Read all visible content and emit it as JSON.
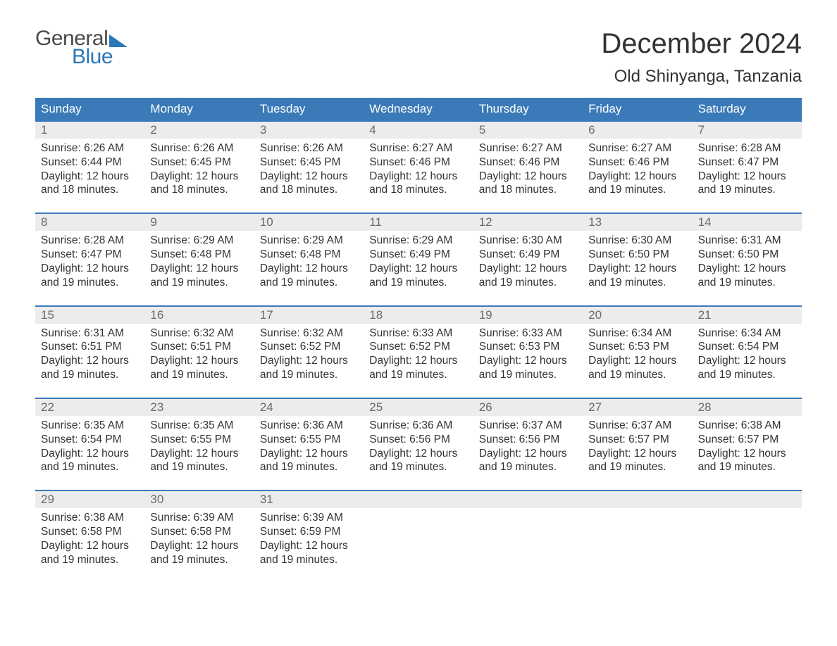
{
  "brand": {
    "word1": "General",
    "word2": "Blue",
    "accent_color": "#2b77b8",
    "text_color": "#4a4a4a"
  },
  "title": "December 2024",
  "location": "Old Shinyanga, Tanzania",
  "colors": {
    "header_bg": "#3a7ab8",
    "header_text": "#ffffff",
    "daynum_bg": "#ececec",
    "daynum_text": "#6a6a6a",
    "body_text": "#333333",
    "week_border": "#3a7ab8",
    "page_bg": "#ffffff"
  },
  "day_labels": [
    "Sunday",
    "Monday",
    "Tuesday",
    "Wednesday",
    "Thursday",
    "Friday",
    "Saturday"
  ],
  "weeks": [
    [
      {
        "n": "1",
        "sr": "Sunrise: 6:26 AM",
        "ss": "Sunset: 6:44 PM",
        "d1": "Daylight: 12 hours",
        "d2": "and 18 minutes."
      },
      {
        "n": "2",
        "sr": "Sunrise: 6:26 AM",
        "ss": "Sunset: 6:45 PM",
        "d1": "Daylight: 12 hours",
        "d2": "and 18 minutes."
      },
      {
        "n": "3",
        "sr": "Sunrise: 6:26 AM",
        "ss": "Sunset: 6:45 PM",
        "d1": "Daylight: 12 hours",
        "d2": "and 18 minutes."
      },
      {
        "n": "4",
        "sr": "Sunrise: 6:27 AM",
        "ss": "Sunset: 6:46 PM",
        "d1": "Daylight: 12 hours",
        "d2": "and 18 minutes."
      },
      {
        "n": "5",
        "sr": "Sunrise: 6:27 AM",
        "ss": "Sunset: 6:46 PM",
        "d1": "Daylight: 12 hours",
        "d2": "and 18 minutes."
      },
      {
        "n": "6",
        "sr": "Sunrise: 6:27 AM",
        "ss": "Sunset: 6:46 PM",
        "d1": "Daylight: 12 hours",
        "d2": "and 19 minutes."
      },
      {
        "n": "7",
        "sr": "Sunrise: 6:28 AM",
        "ss": "Sunset: 6:47 PM",
        "d1": "Daylight: 12 hours",
        "d2": "and 19 minutes."
      }
    ],
    [
      {
        "n": "8",
        "sr": "Sunrise: 6:28 AM",
        "ss": "Sunset: 6:47 PM",
        "d1": "Daylight: 12 hours",
        "d2": "and 19 minutes."
      },
      {
        "n": "9",
        "sr": "Sunrise: 6:29 AM",
        "ss": "Sunset: 6:48 PM",
        "d1": "Daylight: 12 hours",
        "d2": "and 19 minutes."
      },
      {
        "n": "10",
        "sr": "Sunrise: 6:29 AM",
        "ss": "Sunset: 6:48 PM",
        "d1": "Daylight: 12 hours",
        "d2": "and 19 minutes."
      },
      {
        "n": "11",
        "sr": "Sunrise: 6:29 AM",
        "ss": "Sunset: 6:49 PM",
        "d1": "Daylight: 12 hours",
        "d2": "and 19 minutes."
      },
      {
        "n": "12",
        "sr": "Sunrise: 6:30 AM",
        "ss": "Sunset: 6:49 PM",
        "d1": "Daylight: 12 hours",
        "d2": "and 19 minutes."
      },
      {
        "n": "13",
        "sr": "Sunrise: 6:30 AM",
        "ss": "Sunset: 6:50 PM",
        "d1": "Daylight: 12 hours",
        "d2": "and 19 minutes."
      },
      {
        "n": "14",
        "sr": "Sunrise: 6:31 AM",
        "ss": "Sunset: 6:50 PM",
        "d1": "Daylight: 12 hours",
        "d2": "and 19 minutes."
      }
    ],
    [
      {
        "n": "15",
        "sr": "Sunrise: 6:31 AM",
        "ss": "Sunset: 6:51 PM",
        "d1": "Daylight: 12 hours",
        "d2": "and 19 minutes."
      },
      {
        "n": "16",
        "sr": "Sunrise: 6:32 AM",
        "ss": "Sunset: 6:51 PM",
        "d1": "Daylight: 12 hours",
        "d2": "and 19 minutes."
      },
      {
        "n": "17",
        "sr": "Sunrise: 6:32 AM",
        "ss": "Sunset: 6:52 PM",
        "d1": "Daylight: 12 hours",
        "d2": "and 19 minutes."
      },
      {
        "n": "18",
        "sr": "Sunrise: 6:33 AM",
        "ss": "Sunset: 6:52 PM",
        "d1": "Daylight: 12 hours",
        "d2": "and 19 minutes."
      },
      {
        "n": "19",
        "sr": "Sunrise: 6:33 AM",
        "ss": "Sunset: 6:53 PM",
        "d1": "Daylight: 12 hours",
        "d2": "and 19 minutes."
      },
      {
        "n": "20",
        "sr": "Sunrise: 6:34 AM",
        "ss": "Sunset: 6:53 PM",
        "d1": "Daylight: 12 hours",
        "d2": "and 19 minutes."
      },
      {
        "n": "21",
        "sr": "Sunrise: 6:34 AM",
        "ss": "Sunset: 6:54 PM",
        "d1": "Daylight: 12 hours",
        "d2": "and 19 minutes."
      }
    ],
    [
      {
        "n": "22",
        "sr": "Sunrise: 6:35 AM",
        "ss": "Sunset: 6:54 PM",
        "d1": "Daylight: 12 hours",
        "d2": "and 19 minutes."
      },
      {
        "n": "23",
        "sr": "Sunrise: 6:35 AM",
        "ss": "Sunset: 6:55 PM",
        "d1": "Daylight: 12 hours",
        "d2": "and 19 minutes."
      },
      {
        "n": "24",
        "sr": "Sunrise: 6:36 AM",
        "ss": "Sunset: 6:55 PM",
        "d1": "Daylight: 12 hours",
        "d2": "and 19 minutes."
      },
      {
        "n": "25",
        "sr": "Sunrise: 6:36 AM",
        "ss": "Sunset: 6:56 PM",
        "d1": "Daylight: 12 hours",
        "d2": "and 19 minutes."
      },
      {
        "n": "26",
        "sr": "Sunrise: 6:37 AM",
        "ss": "Sunset: 6:56 PM",
        "d1": "Daylight: 12 hours",
        "d2": "and 19 minutes."
      },
      {
        "n": "27",
        "sr": "Sunrise: 6:37 AM",
        "ss": "Sunset: 6:57 PM",
        "d1": "Daylight: 12 hours",
        "d2": "and 19 minutes."
      },
      {
        "n": "28",
        "sr": "Sunrise: 6:38 AM",
        "ss": "Sunset: 6:57 PM",
        "d1": "Daylight: 12 hours",
        "d2": "and 19 minutes."
      }
    ],
    [
      {
        "n": "29",
        "sr": "Sunrise: 6:38 AM",
        "ss": "Sunset: 6:58 PM",
        "d1": "Daylight: 12 hours",
        "d2": "and 19 minutes."
      },
      {
        "n": "30",
        "sr": "Sunrise: 6:39 AM",
        "ss": "Sunset: 6:58 PM",
        "d1": "Daylight: 12 hours",
        "d2": "and 19 minutes."
      },
      {
        "n": "31",
        "sr": "Sunrise: 6:39 AM",
        "ss": "Sunset: 6:59 PM",
        "d1": "Daylight: 12 hours",
        "d2": "and 19 minutes."
      },
      null,
      null,
      null,
      null
    ]
  ]
}
